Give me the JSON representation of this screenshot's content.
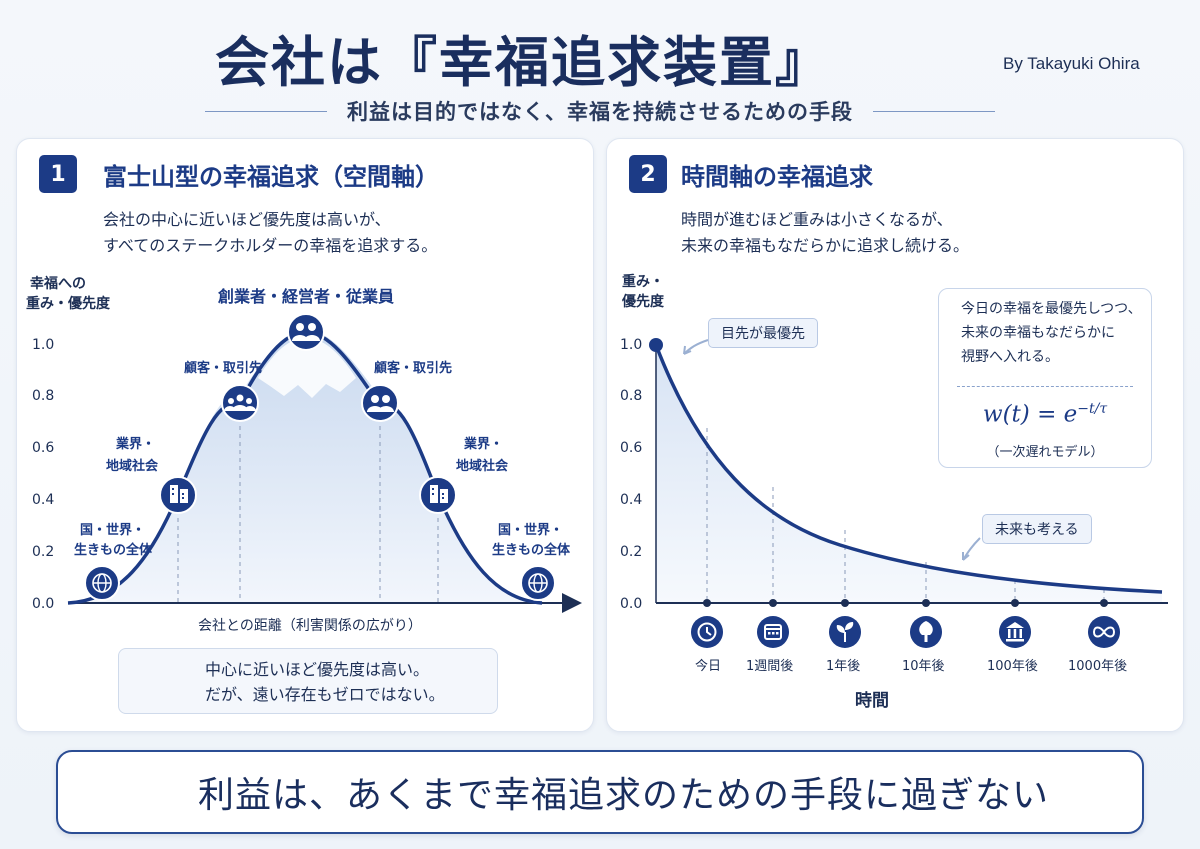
{
  "header": {
    "title": "会社は『幸福追求装置』",
    "byline": "By Takayuki Ohira",
    "subtitle": "利益は目的ではなく、幸福を持続させるための手段"
  },
  "panel1": {
    "number": "1",
    "title": "富士山型の幸福追求（空間軸）",
    "desc_line1": "会社の中心に近いほど優先度は高いが、",
    "desc_line2": "すべてのステークホルダーの幸福を追求する。",
    "ylabel_line1": "幸福への",
    "ylabel_line2": "重み・優先度",
    "xlabel": "会社との距離（利害関係の広がり）",
    "yticks": [
      "1.0",
      "0.8",
      "0.6",
      "0.4",
      "0.2",
      "0.0"
    ],
    "stakeholders": {
      "peak": "創業者・経営者・従業員",
      "customers_left": "顧客・取引先",
      "customers_right": "顧客・取引先",
      "industry_left_1": "業界・",
      "industry_left_2": "地域社会",
      "industry_right_1": "業界・",
      "industry_right_2": "地域社会",
      "world_left_1": "国・世界・",
      "world_left_2": "生きもの全体",
      "world_right_1": "国・世界・",
      "world_right_2": "生きもの全体"
    },
    "note_line1": "中心に近いほど優先度は高い。",
    "note_line2": "だが、遠い存在もゼロではない。"
  },
  "panel2": {
    "number": "2",
    "title": "時間軸の幸福追求",
    "desc_line1": "時間が進むほど重みは小さくなるが、",
    "desc_line2": "未来の幸福もなだらかに追求し続ける。",
    "ylabel_line1": "重み・",
    "ylabel_line2": "優先度",
    "yticks": [
      "1.0",
      "0.8",
      "0.6",
      "0.4",
      "0.2",
      "0.0"
    ],
    "xlabel": "時間",
    "time_labels": [
      "今日",
      "1週間後",
      "1年後",
      "10年後",
      "100年後",
      "1000年後"
    ],
    "time_icons": [
      "clock-icon",
      "calendar-icon",
      "sprout-icon",
      "tree-icon",
      "institution-icon",
      "infinity-icon"
    ],
    "callout_now": "目先が最優先",
    "callout_future": "未来も考える",
    "formula_box_line1": "今日の幸福を最優先しつつ、",
    "formula_box_line2": "未来の幸福もなだらかに",
    "formula_box_line3": "視野へ入れる。",
    "formula_main": "w(t) = e",
    "formula_exp": "−t/τ",
    "formula_caption": "（一次遅れモデル）"
  },
  "footer": {
    "message": "利益は、あくまで幸福追求のための手段に過ぎない"
  },
  "colors": {
    "navy": "#1c3b86",
    "dark_text": "#1d2f55",
    "fill_light": "#dce7f5"
  }
}
